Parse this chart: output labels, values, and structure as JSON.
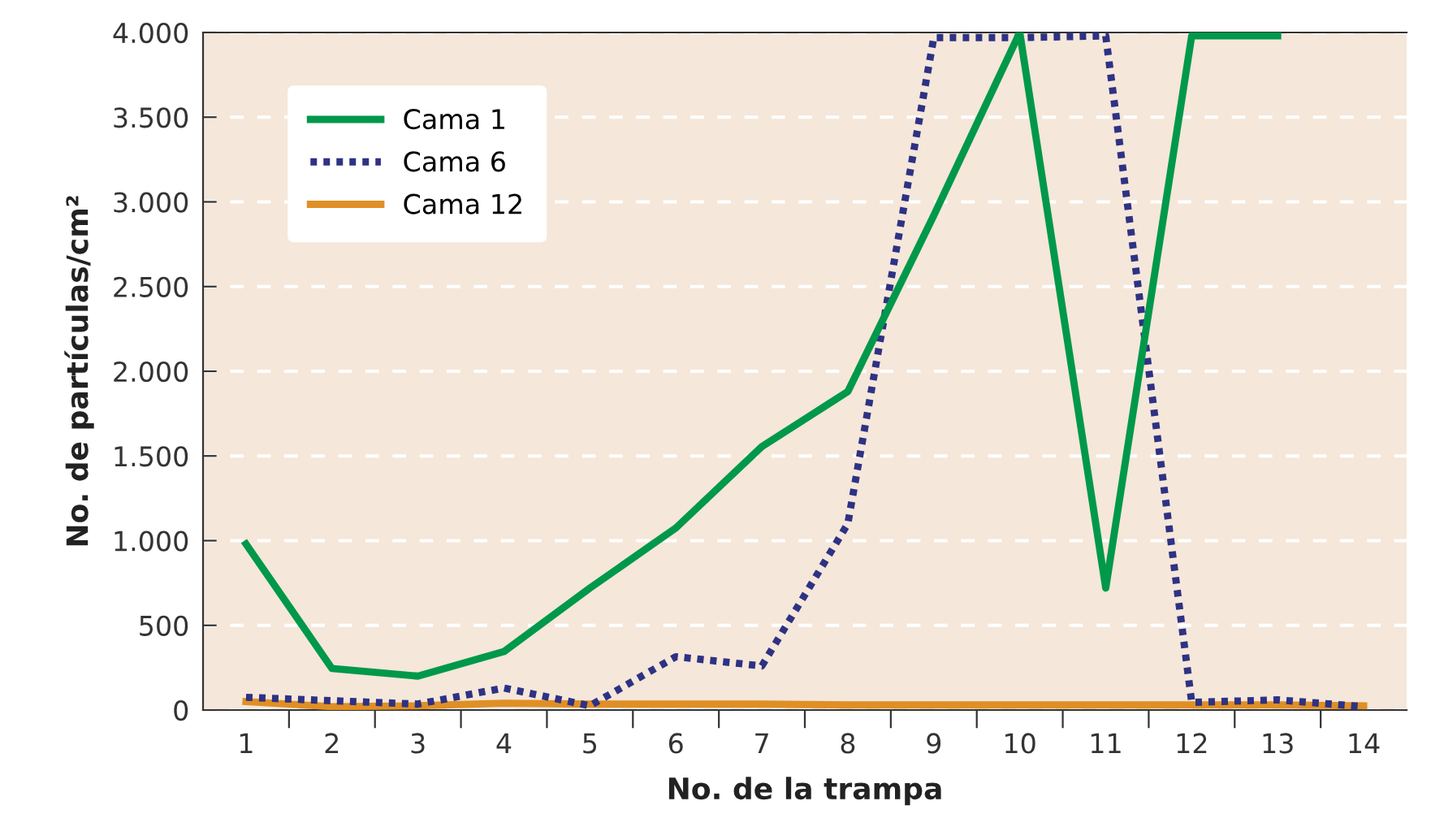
{
  "chart_data": {
    "type": "line",
    "xlabel": "No. de la trampa",
    "ylabel": "No. de partículas/cm²",
    "categories": [
      "1",
      "2",
      "3",
      "4",
      "5",
      "6",
      "7",
      "8",
      "9",
      "10",
      "11",
      "12",
      "13",
      "14"
    ],
    "series": [
      {
        "name": "Cama 1",
        "color": "#00984a",
        "line_style": "solid",
        "values": [
          980,
          245,
          200,
          345,
          720,
          1075,
          1555,
          1880,
          2920,
          4000,
          720,
          3980,
          3980,
          null
        ]
      },
      {
        "name": "Cama 6",
        "color": "#2e3284",
        "line_style": "dotted",
        "values": [
          75,
          55,
          35,
          130,
          25,
          315,
          260,
          1100,
          3970,
          3970,
          3980,
          45,
          60,
          20
        ]
      },
      {
        "name": "Cama 12",
        "color": "#e08f25",
        "line_style": "solid",
        "values": [
          50,
          20,
          25,
          40,
          35,
          35,
          35,
          30,
          30,
          30,
          30,
          30,
          30,
          25
        ]
      }
    ],
    "ylim": [
      0,
      4000
    ],
    "yticks": [
      0,
      500,
      {
        "value": 1000,
        "label": "1.000"
      },
      {
        "value": 1500,
        "label": "1.500"
      },
      {
        "value": 2000,
        "label": "2.000"
      },
      {
        "value": 2500,
        "label": "2.500"
      },
      {
        "value": 3000,
        "label": "3.000"
      },
      {
        "value": 3500,
        "label": "3.500"
      },
      {
        "value": 4000,
        "label": "4.000"
      }
    ],
    "grid": "y",
    "legend": "top left",
    "marker": "none"
  }
}
